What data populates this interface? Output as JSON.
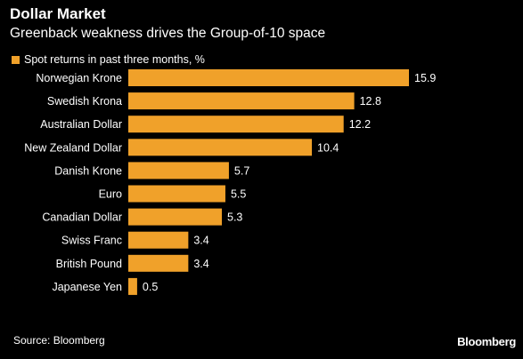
{
  "header": {
    "title": "Dollar Market",
    "subtitle": "Greenback weakness drives the Group-of-10 space"
  },
  "colors": {
    "bar": "#f0a12a",
    "background": "#000000",
    "text": "#ffffff"
  },
  "chart_data": {
    "type": "bar",
    "orientation": "horizontal",
    "categories": [
      "Norwegian Krone",
      "Swedish Krona",
      "Australian Dollar",
      "New Zealand Dollar",
      "Danish Krone",
      "Euro",
      "Canadian Dollar",
      "Swiss Franc",
      "British Pound",
      "Japanese Yen"
    ],
    "series": [
      {
        "name": "Spot returns in past three months, %",
        "values": [
          15.9,
          12.8,
          12.2,
          10.4,
          5.7,
          5.5,
          5.3,
          3.4,
          3.4,
          0.5
        ]
      }
    ],
    "data_labels": [
      "15.9",
      "12.8",
      "12.2",
      "10.4",
      "5.7",
      "5.5",
      "5.3",
      "3.4",
      "3.4",
      "0.5"
    ],
    "xlim": [
      0,
      15.9
    ],
    "grid": false,
    "legend_placement": "top-left"
  },
  "footer": {
    "source": "Source: Bloomberg",
    "brand": "Bloomberg"
  }
}
